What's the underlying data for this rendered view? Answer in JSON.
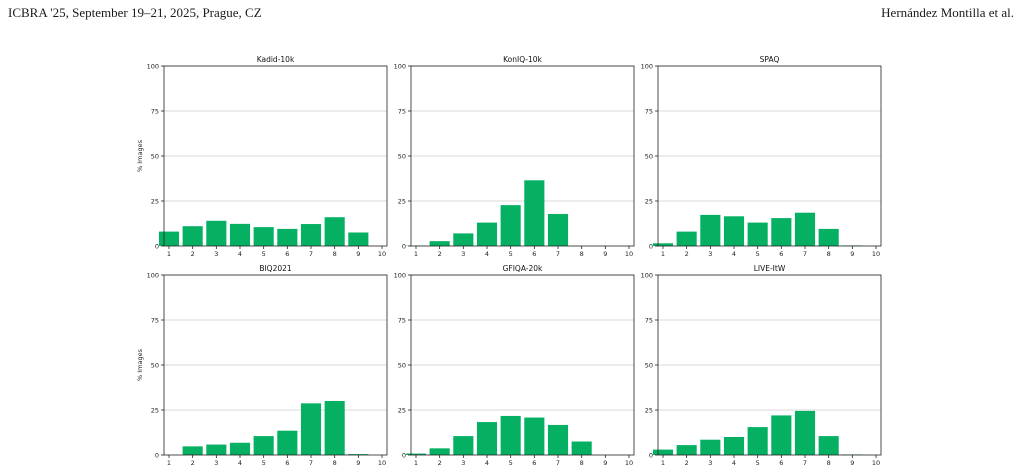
{
  "header": {
    "left": "ICBRA '25, September 19–21, 2025, Prague, CZ",
    "right": "Hernández Montilla et al."
  },
  "colors": {
    "bar": "#05b063",
    "grid": "#cccccc",
    "axis": "#222222"
  },
  "chart_data": [
    {
      "type": "bar",
      "title": "Kadid-10k",
      "ylabel": "% Images",
      "xlabel": "",
      "categories": [
        "1",
        "2",
        "3",
        "4",
        "5",
        "6",
        "7",
        "8",
        "9",
        "10"
      ],
      "values": [
        8,
        11,
        14,
        12.3,
        10.5,
        9.5,
        12.2,
        16,
        7.5,
        0
      ],
      "ylim": [
        0,
        100
      ],
      "yticks": [
        0,
        25,
        50,
        75,
        100
      ],
      "grid": true
    },
    {
      "type": "bar",
      "title": "KonIQ-10k",
      "ylabel": "",
      "xlabel": "",
      "categories": [
        "1",
        "2",
        "3",
        "4",
        "5",
        "6",
        "7",
        "8",
        "9",
        "10"
      ],
      "values": [
        0.2,
        2.7,
        7,
        13,
        22.7,
        36.5,
        17.8,
        0,
        0,
        0
      ],
      "ylim": [
        0,
        100
      ],
      "yticks": [
        0,
        25,
        50,
        75,
        100
      ],
      "grid": true
    },
    {
      "type": "bar",
      "title": "SPAQ",
      "ylabel": "",
      "xlabel": "",
      "categories": [
        "1",
        "2",
        "3",
        "4",
        "5",
        "6",
        "7",
        "8",
        "9",
        "10"
      ],
      "values": [
        1.5,
        8,
        17.3,
        16.5,
        13,
        15.5,
        18.5,
        9.5,
        0.3,
        0
      ],
      "ylim": [
        0,
        100
      ],
      "yticks": [
        0,
        25,
        50,
        75,
        100
      ],
      "grid": true
    },
    {
      "type": "bar",
      "title": "BIQ2021",
      "ylabel": "% Images",
      "xlabel": "",
      "categories": [
        "1",
        "2",
        "3",
        "4",
        "5",
        "6",
        "7",
        "8",
        "9",
        "10"
      ],
      "values": [
        0,
        4.8,
        5.8,
        6.8,
        10.5,
        13.5,
        28.7,
        30,
        0.5,
        0
      ],
      "ylim": [
        0,
        100
      ],
      "yticks": [
        0,
        25,
        50,
        75,
        100
      ],
      "grid": true
    },
    {
      "type": "bar",
      "title": "GFIQA-20k",
      "ylabel": "",
      "xlabel": "",
      "categories": [
        "1",
        "2",
        "3",
        "4",
        "5",
        "6",
        "7",
        "8",
        "9",
        "10"
      ],
      "values": [
        0.8,
        3.7,
        10.5,
        18.3,
        21.7,
        20.8,
        16.7,
        7.5,
        0,
        0
      ],
      "ylim": [
        0,
        100
      ],
      "yticks": [
        0,
        25,
        50,
        75,
        100
      ],
      "grid": true
    },
    {
      "type": "bar",
      "title": "LIVE-ItW",
      "ylabel": "",
      "xlabel": "",
      "categories": [
        "1",
        "2",
        "3",
        "4",
        "5",
        "6",
        "7",
        "8",
        "9",
        "10"
      ],
      "values": [
        3,
        5.5,
        8.5,
        10,
        15.5,
        22,
        24.5,
        10.5,
        0.3,
        0
      ],
      "ylim": [
        0,
        100
      ],
      "yticks": [
        0,
        25,
        50,
        75,
        100
      ],
      "grid": true
    }
  ]
}
